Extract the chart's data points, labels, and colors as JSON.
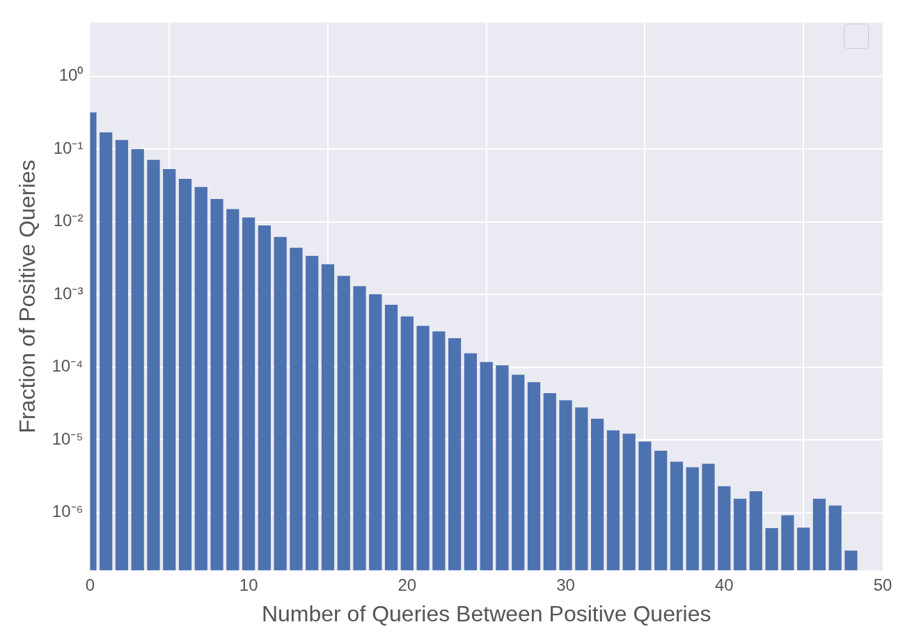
{
  "chart_data": {
    "type": "bar",
    "xlabel": "Number of Queries Between Positive Queries",
    "ylabel": "Fraction of Positive Queries",
    "x": [
      0,
      1,
      2,
      3,
      4,
      5,
      6,
      7,
      8,
      9,
      10,
      11,
      12,
      13,
      14,
      15,
      16,
      17,
      18,
      19,
      20,
      21,
      22,
      23,
      24,
      25,
      26,
      27,
      28,
      29,
      30,
      31,
      32,
      33,
      34,
      35,
      36,
      37,
      38,
      39,
      40,
      41,
      42,
      43,
      44,
      45,
      46,
      47,
      48
    ],
    "values": [
      0.32,
      0.17,
      0.133,
      0.1,
      0.071,
      0.053,
      0.039,
      0.03,
      0.0206,
      0.0149,
      0.0115,
      0.0089,
      0.0062,
      0.0044,
      0.0034,
      0.0026,
      0.0018,
      0.0013,
      0.00101,
      0.00072,
      0.0005,
      0.00037,
      0.00031,
      0.00025,
      0.000155,
      0.000118,
      0.000106,
      7.9e-05,
      6.2e-05,
      4.4e-05,
      3.5e-05,
      2.8e-05,
      1.95e-05,
      1.35e-05,
      1.22e-05,
      9.5e-06,
      7.1e-06,
      5e-06,
      4.2e-06,
      4.7e-06,
      2.3e-06,
      1.55e-06,
      1.96e-06,
      6.1e-07,
      9.2e-07,
      6.2e-07,
      1.55e-06,
      1.25e-06,
      3e-07
    ],
    "color": "#4c72b0",
    "log": true,
    "xlim": [
      0,
      50
    ],
    "xticks": [
      0,
      10,
      20,
      30,
      40,
      50
    ],
    "ylim": [
      1.6e-07,
      5.5
    ],
    "yticks": [
      {
        "value": 1,
        "label": "10⁰"
      },
      {
        "value": 0.1,
        "label": "10⁻¹"
      },
      {
        "value": 0.01,
        "label": "10⁻²"
      },
      {
        "value": 0.001,
        "label": "10⁻³"
      },
      {
        "value": 0.0001,
        "label": "10⁻⁴"
      },
      {
        "value": 1e-05,
        "label": "10⁻⁵"
      },
      {
        "value": 1e-06,
        "label": "10⁻⁶"
      }
    ],
    "grid": true
  }
}
